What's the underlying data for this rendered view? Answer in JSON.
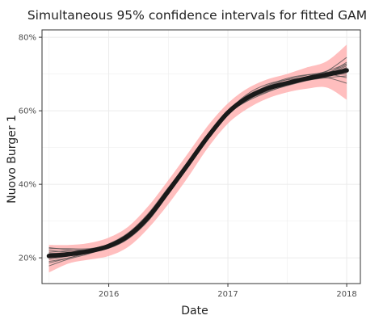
{
  "chart_data": {
    "type": "line",
    "title": "Simultaneous 95% confidence intervals for fitted GAM",
    "xlabel": "Date",
    "ylabel": "Nuovo Burger 1",
    "x_ticks": [
      "2016",
      "2017",
      "2018"
    ],
    "y_ticks": [
      "20%",
      "40%",
      "60%",
      "80%"
    ],
    "xlim": [
      "2015-06-10",
      "2018-02-12"
    ],
    "ylim": [
      0.13,
      0.82
    ],
    "grid": true,
    "colors": {
      "band": "#ffb3b3",
      "fit": "#1a1a1a",
      "draws": "#4d4d4d",
      "grid": "#ebebeb",
      "panel_border": "#333333"
    },
    "x": [
      "2015-07-01",
      "2015-09-01",
      "2015-11-01",
      "2016-01-01",
      "2016-03-01",
      "2016-05-01",
      "2016-07-01",
      "2016-09-01",
      "2016-11-01",
      "2017-01-01",
      "2017-03-01",
      "2017-05-01",
      "2017-07-01",
      "2017-09-01",
      "2017-11-01",
      "2018-01-01"
    ],
    "fit": [
      0.205,
      0.21,
      0.218,
      0.232,
      0.26,
      0.31,
      0.38,
      0.455,
      0.53,
      0.595,
      0.635,
      0.66,
      0.675,
      0.688,
      0.698,
      0.71
    ],
    "band_upper": [
      0.235,
      0.235,
      0.24,
      0.255,
      0.285,
      0.34,
      0.41,
      0.485,
      0.56,
      0.62,
      0.66,
      0.685,
      0.7,
      0.718,
      0.735,
      0.78
    ],
    "band_lower": [
      0.16,
      0.185,
      0.195,
      0.205,
      0.23,
      0.28,
      0.345,
      0.42,
      0.5,
      0.565,
      0.605,
      0.633,
      0.65,
      0.66,
      0.663,
      0.63
    ],
    "series": [
      {
        "values": [
          0.225,
          0.225,
          0.225,
          0.236,
          0.262,
          0.31,
          0.378,
          0.452,
          0.527,
          0.595,
          0.64,
          0.662,
          0.672,
          0.683,
          0.69,
          0.695
        ]
      },
      {
        "values": [
          0.19,
          0.2,
          0.214,
          0.232,
          0.262,
          0.314,
          0.386,
          0.46,
          0.532,
          0.59,
          0.628,
          0.655,
          0.675,
          0.693,
          0.708,
          0.728
        ]
      },
      {
        "values": [
          0.215,
          0.22,
          0.223,
          0.232,
          0.255,
          0.303,
          0.372,
          0.448,
          0.528,
          0.6,
          0.642,
          0.666,
          0.68,
          0.69,
          0.697,
          0.7
        ]
      },
      {
        "values": [
          0.178,
          0.197,
          0.211,
          0.23,
          0.26,
          0.312,
          0.384,
          0.46,
          0.534,
          0.592,
          0.626,
          0.65,
          0.67,
          0.69,
          0.708,
          0.745
        ]
      },
      {
        "values": [
          0.228,
          0.222,
          0.22,
          0.23,
          0.257,
          0.305,
          0.375,
          0.45,
          0.526,
          0.597,
          0.645,
          0.672,
          0.684,
          0.69,
          0.69,
          0.675
        ]
      },
      {
        "values": [
          0.2,
          0.208,
          0.218,
          0.235,
          0.266,
          0.318,
          0.388,
          0.462,
          0.535,
          0.596,
          0.63,
          0.652,
          0.668,
          0.683,
          0.7,
          0.732
        ]
      },
      {
        "values": [
          0.21,
          0.212,
          0.215,
          0.226,
          0.252,
          0.3,
          0.372,
          0.452,
          0.532,
          0.6,
          0.638,
          0.658,
          0.67,
          0.682,
          0.695,
          0.718
        ]
      },
      {
        "values": [
          0.196,
          0.205,
          0.219,
          0.238,
          0.268,
          0.32,
          0.39,
          0.46,
          0.528,
          0.588,
          0.632,
          0.665,
          0.685,
          0.697,
          0.705,
          0.712
        ]
      },
      {
        "values": [
          0.22,
          0.216,
          0.216,
          0.226,
          0.252,
          0.302,
          0.374,
          0.45,
          0.525,
          0.592,
          0.638,
          0.668,
          0.688,
          0.698,
          0.7,
          0.69
        ]
      },
      {
        "values": [
          0.186,
          0.2,
          0.216,
          0.236,
          0.266,
          0.316,
          0.384,
          0.458,
          0.533,
          0.598,
          0.636,
          0.66,
          0.676,
          0.69,
          0.703,
          0.725
        ]
      },
      {
        "values": [
          0.212,
          0.214,
          0.218,
          0.231,
          0.258,
          0.307,
          0.376,
          0.452,
          0.528,
          0.593,
          0.632,
          0.656,
          0.672,
          0.686,
          0.699,
          0.722
        ]
      },
      {
        "values": [
          0.203,
          0.209,
          0.217,
          0.233,
          0.261,
          0.312,
          0.382,
          0.456,
          0.53,
          0.597,
          0.64,
          0.664,
          0.678,
          0.688,
          0.696,
          0.704
        ]
      }
    ]
  }
}
